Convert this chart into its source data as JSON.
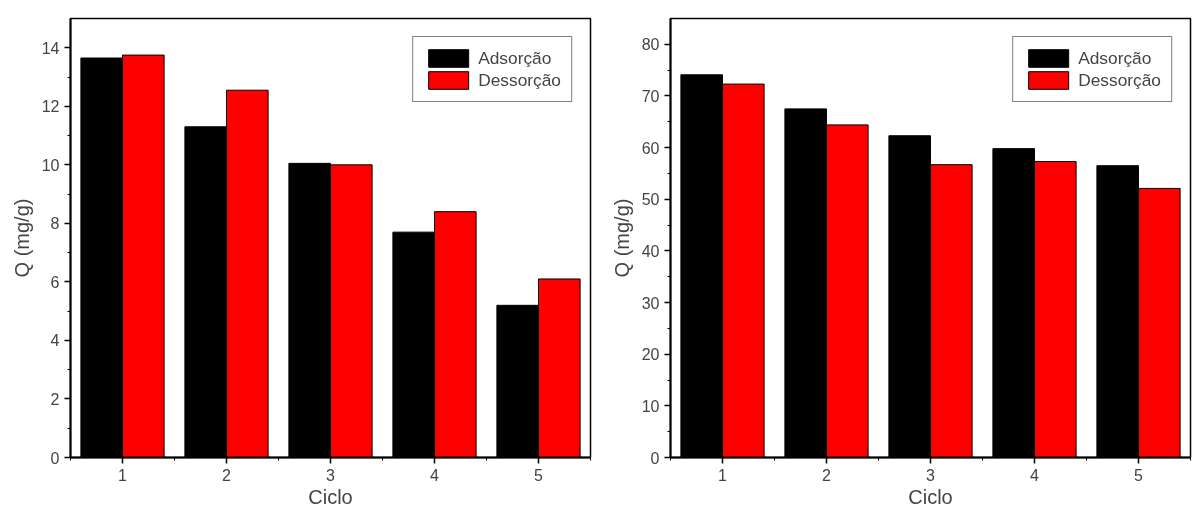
{
  "chart_data": [
    {
      "type": "bar",
      "xlabel": "Ciclo",
      "ylabel": "Q (mg/g)",
      "categories": [
        "1",
        "2",
        "3",
        "4",
        "5"
      ],
      "ylim": [
        0,
        15
      ],
      "yticks": [
        0,
        2,
        4,
        6,
        8,
        10,
        12,
        14
      ],
      "legend": "top right",
      "series": [
        {
          "name": "Adsorção",
          "color": "#000000",
          "values": [
            13.65,
            11.3,
            10.05,
            7.7,
            5.2
          ]
        },
        {
          "name": "Dessorção",
          "color": "#ff0000",
          "values": [
            13.75,
            12.55,
            10.0,
            8.4,
            6.1
          ]
        }
      ]
    },
    {
      "type": "bar",
      "xlabel": "Ciclo",
      "ylabel": "Q (mg/g)",
      "categories": [
        "1",
        "2",
        "3",
        "4",
        "5"
      ],
      "ylim": [
        0,
        85
      ],
      "yticks": [
        0,
        10,
        20,
        30,
        40,
        50,
        60,
        70,
        80
      ],
      "legend": "top right",
      "series": [
        {
          "name": "Adsorção",
          "color": "#000000",
          "values": [
            74.1,
            67.5,
            62.3,
            59.8,
            56.5
          ]
        },
        {
          "name": "Dessorção",
          "color": "#ff0000",
          "values": [
            72.3,
            64.4,
            56.7,
            57.3,
            52.1
          ]
        }
      ]
    }
  ]
}
